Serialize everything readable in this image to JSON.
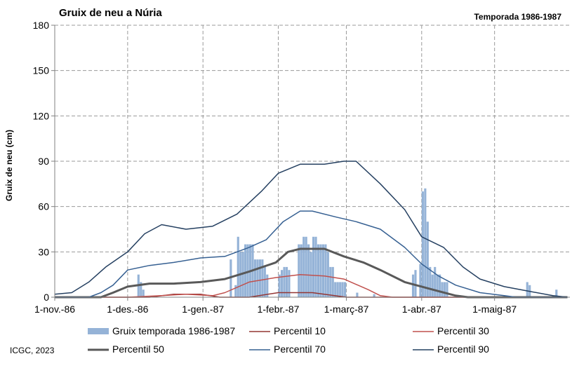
{
  "chart_data": {
    "type": "bar",
    "title": "Gruix de neu a Núria",
    "subtitle": "Temporada 1986-1987",
    "ylabel": "Gruix de neu (cm)",
    "xlabel": "",
    "ylim": [
      0,
      180
    ],
    "yticks": [
      0,
      30,
      60,
      90,
      120,
      150,
      180
    ],
    "xlim": [
      "1986-11-01",
      "1987-05-31"
    ],
    "xticks": [
      {
        "date": "1986-11-01",
        "label": "1-nov.-86"
      },
      {
        "date": "1986-12-01",
        "label": "1-des.-86"
      },
      {
        "date": "1987-01-01",
        "label": "1-gen.-87"
      },
      {
        "date": "1987-02-01",
        "label": "1-febr.-87"
      },
      {
        "date": "1987-03-01",
        "label": "1-març-87"
      },
      {
        "date": "1987-04-01",
        "label": "1-abr.-87"
      },
      {
        "date": "1987-05-01",
        "label": "1-maig-87"
      }
    ],
    "grid": true,
    "legend_position": "bottom",
    "source": "ICGC, 2023",
    "bars": {
      "name": "Gruix temporada 1986-1987",
      "color": "#95b3d7",
      "values": [
        [
          "1986-12-05",
          15
        ],
        [
          "1986-12-06",
          10
        ],
        [
          "1986-12-07",
          5
        ],
        [
          "1987-01-12",
          25
        ],
        [
          "1987-01-14",
          8
        ],
        [
          "1987-01-15",
          40
        ],
        [
          "1987-01-16",
          30
        ],
        [
          "1987-01-17",
          30
        ],
        [
          "1987-01-18",
          35
        ],
        [
          "1987-01-19",
          35
        ],
        [
          "1987-01-20",
          35
        ],
        [
          "1987-01-21",
          35
        ],
        [
          "1987-01-22",
          25
        ],
        [
          "1987-01-23",
          25
        ],
        [
          "1987-01-24",
          25
        ],
        [
          "1987-01-25",
          25
        ],
        [
          "1987-01-26",
          20
        ],
        [
          "1987-01-27",
          15
        ],
        [
          "1987-02-01",
          15
        ],
        [
          "1987-02-02",
          18
        ],
        [
          "1987-02-03",
          20
        ],
        [
          "1987-02-04",
          20
        ],
        [
          "1987-02-05",
          18
        ],
        [
          "1987-02-09",
          35
        ],
        [
          "1987-02-10",
          35
        ],
        [
          "1987-02-11",
          40
        ],
        [
          "1987-02-12",
          40
        ],
        [
          "1987-02-13",
          35
        ],
        [
          "1987-02-14",
          30
        ],
        [
          "1987-02-15",
          40
        ],
        [
          "1987-02-16",
          40
        ],
        [
          "1987-02-17",
          35
        ],
        [
          "1987-02-18",
          35
        ],
        [
          "1987-02-19",
          35
        ],
        [
          "1987-02-20",
          35
        ],
        [
          "1987-02-21",
          30
        ],
        [
          "1987-02-22",
          20
        ],
        [
          "1987-02-23",
          20
        ],
        [
          "1987-02-24",
          10
        ],
        [
          "1987-02-25",
          10
        ],
        [
          "1987-02-26",
          10
        ],
        [
          "1987-02-27",
          10
        ],
        [
          "1987-02-28",
          10
        ],
        [
          "1987-03-05",
          3
        ],
        [
          "1987-03-12",
          2
        ],
        [
          "1987-03-28",
          15
        ],
        [
          "1987-03-29",
          18
        ],
        [
          "1987-03-31",
          22
        ],
        [
          "1987-04-01",
          70
        ],
        [
          "1987-04-02",
          72
        ],
        [
          "1987-04-03",
          50
        ],
        [
          "1987-04-04",
          20
        ],
        [
          "1987-04-05",
          15
        ],
        [
          "1987-04-06",
          20
        ],
        [
          "1987-04-07",
          15
        ],
        [
          "1987-04-08",
          15
        ],
        [
          "1987-04-09",
          10
        ],
        [
          "1987-04-10",
          10
        ],
        [
          "1987-04-11",
          10
        ],
        [
          "1987-05-14",
          10
        ],
        [
          "1987-05-15",
          8
        ],
        [
          "1987-05-26",
          5
        ]
      ]
    },
    "series": [
      {
        "name": "Percentil 10",
        "color": "#943634",
        "width": 1.5,
        "points": [
          [
            "1986-11-01",
            0
          ],
          [
            "1986-12-10",
            0
          ],
          [
            "1986-12-20",
            2
          ],
          [
            "1986-12-31",
            2
          ],
          [
            "1987-01-08",
            0
          ],
          [
            "1987-01-20",
            0
          ],
          [
            "1987-02-01",
            3
          ],
          [
            "1987-02-15",
            3
          ],
          [
            "1987-03-01",
            0
          ],
          [
            "1987-05-31",
            0
          ]
        ]
      },
      {
        "name": "Percentil 30",
        "color": "#c0504d",
        "width": 1.5,
        "points": [
          [
            "1986-11-01",
            0
          ],
          [
            "1986-12-01",
            0
          ],
          [
            "1986-12-15",
            1
          ],
          [
            "1986-12-25",
            2
          ],
          [
            "1987-01-05",
            1
          ],
          [
            "1987-01-10",
            3
          ],
          [
            "1987-01-20",
            10
          ],
          [
            "1987-01-31",
            13
          ],
          [
            "1987-02-10",
            15
          ],
          [
            "1987-02-20",
            14
          ],
          [
            "1987-02-28",
            12
          ],
          [
            "1987-03-10",
            5
          ],
          [
            "1987-03-15",
            1
          ],
          [
            "1987-03-20",
            0
          ],
          [
            "1987-05-31",
            0
          ]
        ]
      },
      {
        "name": "Percentil 50",
        "color": "#595959",
        "width": 3,
        "points": [
          [
            "1986-11-01",
            0
          ],
          [
            "1986-11-20",
            0
          ],
          [
            "1986-11-25",
            3
          ],
          [
            "1986-12-01",
            7
          ],
          [
            "1986-12-10",
            9
          ],
          [
            "1986-12-20",
            9
          ],
          [
            "1986-12-31",
            10
          ],
          [
            "1987-01-10",
            12
          ],
          [
            "1987-01-20",
            17
          ],
          [
            "1987-01-31",
            23
          ],
          [
            "1987-02-05",
            30
          ],
          [
            "1987-02-10",
            32
          ],
          [
            "1987-02-20",
            32
          ],
          [
            "1987-02-28",
            27
          ],
          [
            "1987-03-08",
            23
          ],
          [
            "1987-03-15",
            18
          ],
          [
            "1987-03-25",
            10
          ],
          [
            "1987-04-01",
            7
          ],
          [
            "1987-04-08",
            4
          ],
          [
            "1987-04-15",
            1
          ],
          [
            "1987-04-20",
            0
          ],
          [
            "1987-05-31",
            0
          ]
        ]
      },
      {
        "name": "Percentil 70",
        "color": "#366092",
        "width": 1.5,
        "points": [
          [
            "1986-11-01",
            0
          ],
          [
            "1986-11-15",
            0
          ],
          [
            "1986-11-20",
            3
          ],
          [
            "1986-11-25",
            8
          ],
          [
            "1986-12-01",
            18
          ],
          [
            "1986-12-10",
            21
          ],
          [
            "1986-12-20",
            23
          ],
          [
            "1986-12-31",
            26
          ],
          [
            "1987-01-10",
            27
          ],
          [
            "1987-01-20",
            33
          ],
          [
            "1987-01-27",
            38
          ],
          [
            "1987-02-03",
            50
          ],
          [
            "1987-02-10",
            57
          ],
          [
            "1987-02-15",
            57
          ],
          [
            "1987-02-25",
            53
          ],
          [
            "1987-03-05",
            50
          ],
          [
            "1987-03-15",
            45
          ],
          [
            "1987-03-25",
            33
          ],
          [
            "1987-04-01",
            22
          ],
          [
            "1987-04-08",
            14
          ],
          [
            "1987-04-15",
            8
          ],
          [
            "1987-04-25",
            3
          ],
          [
            "1987-05-05",
            1
          ],
          [
            "1987-05-10",
            0
          ],
          [
            "1987-05-31",
            0
          ]
        ]
      },
      {
        "name": "Percentil 90",
        "color": "#254061",
        "width": 1.5,
        "points": [
          [
            "1986-11-01",
            2
          ],
          [
            "1986-11-08",
            3
          ],
          [
            "1986-11-15",
            10
          ],
          [
            "1986-11-22",
            20
          ],
          [
            "1986-12-01",
            30
          ],
          [
            "1986-12-08",
            42
          ],
          [
            "1986-12-15",
            48
          ],
          [
            "1986-12-25",
            45
          ],
          [
            "1987-01-05",
            47
          ],
          [
            "1987-01-15",
            55
          ],
          [
            "1987-01-25",
            70
          ],
          [
            "1987-02-01",
            82
          ],
          [
            "1987-02-10",
            88
          ],
          [
            "1987-02-20",
            88
          ],
          [
            "1987-02-28",
            90
          ],
          [
            "1987-03-05",
            90
          ],
          [
            "1987-03-15",
            75
          ],
          [
            "1987-03-25",
            58
          ],
          [
            "1987-04-01",
            40
          ],
          [
            "1987-04-10",
            33
          ],
          [
            "1987-04-18",
            20
          ],
          [
            "1987-04-25",
            12
          ],
          [
            "1987-05-05",
            7
          ],
          [
            "1987-05-15",
            4
          ],
          [
            "1987-05-25",
            1
          ],
          [
            "1987-05-31",
            0
          ]
        ]
      }
    ]
  }
}
